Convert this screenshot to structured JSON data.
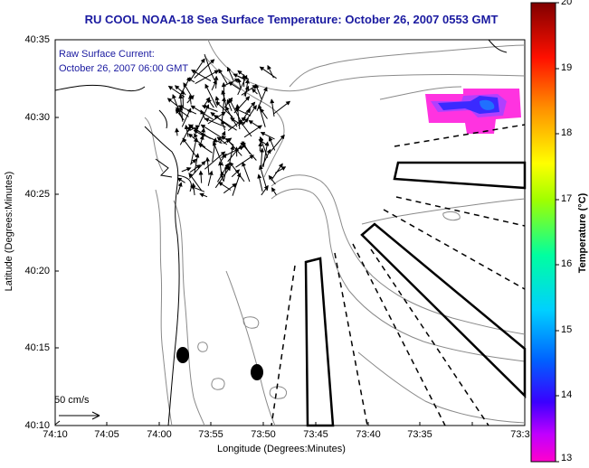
{
  "map": {
    "title": "RU COOL  NOAA-18  Sea Surface Temperature:  October 26, 2007 0553 GMT",
    "current_label": "Raw Surface Current:",
    "current_time": "October 26, 2007 06:00 GMT",
    "xlabel": "Longitude (Degrees:Minutes)",
    "ylabel": "Latitude (Degrees:Minutes)",
    "x_ticks": [
      "74:10",
      "74:05",
      "74:00",
      "73:55",
      "73:50",
      "73:45",
      "73:40",
      "73:35",
      "73:3"
    ],
    "y_ticks": [
      "40:35",
      "40:30",
      "40:25",
      "40:20",
      "40:15",
      "40:10"
    ],
    "scale_label": "50 cm/s"
  },
  "colorbar": {
    "label": "Temperature (°C)",
    "ticks": [
      "20",
      "19",
      "18",
      "17",
      "16",
      "15",
      "14",
      "13"
    ],
    "colors": [
      "#ff00cc",
      "#6f00ff",
      "#0000ff",
      "#00c8ff",
      "#00ff80",
      "#cfff00",
      "#ffd000",
      "#ff6000",
      "#ff0000",
      "#8b0000"
    ]
  },
  "sst_patch": {
    "temperature": 13.6
  }
}
